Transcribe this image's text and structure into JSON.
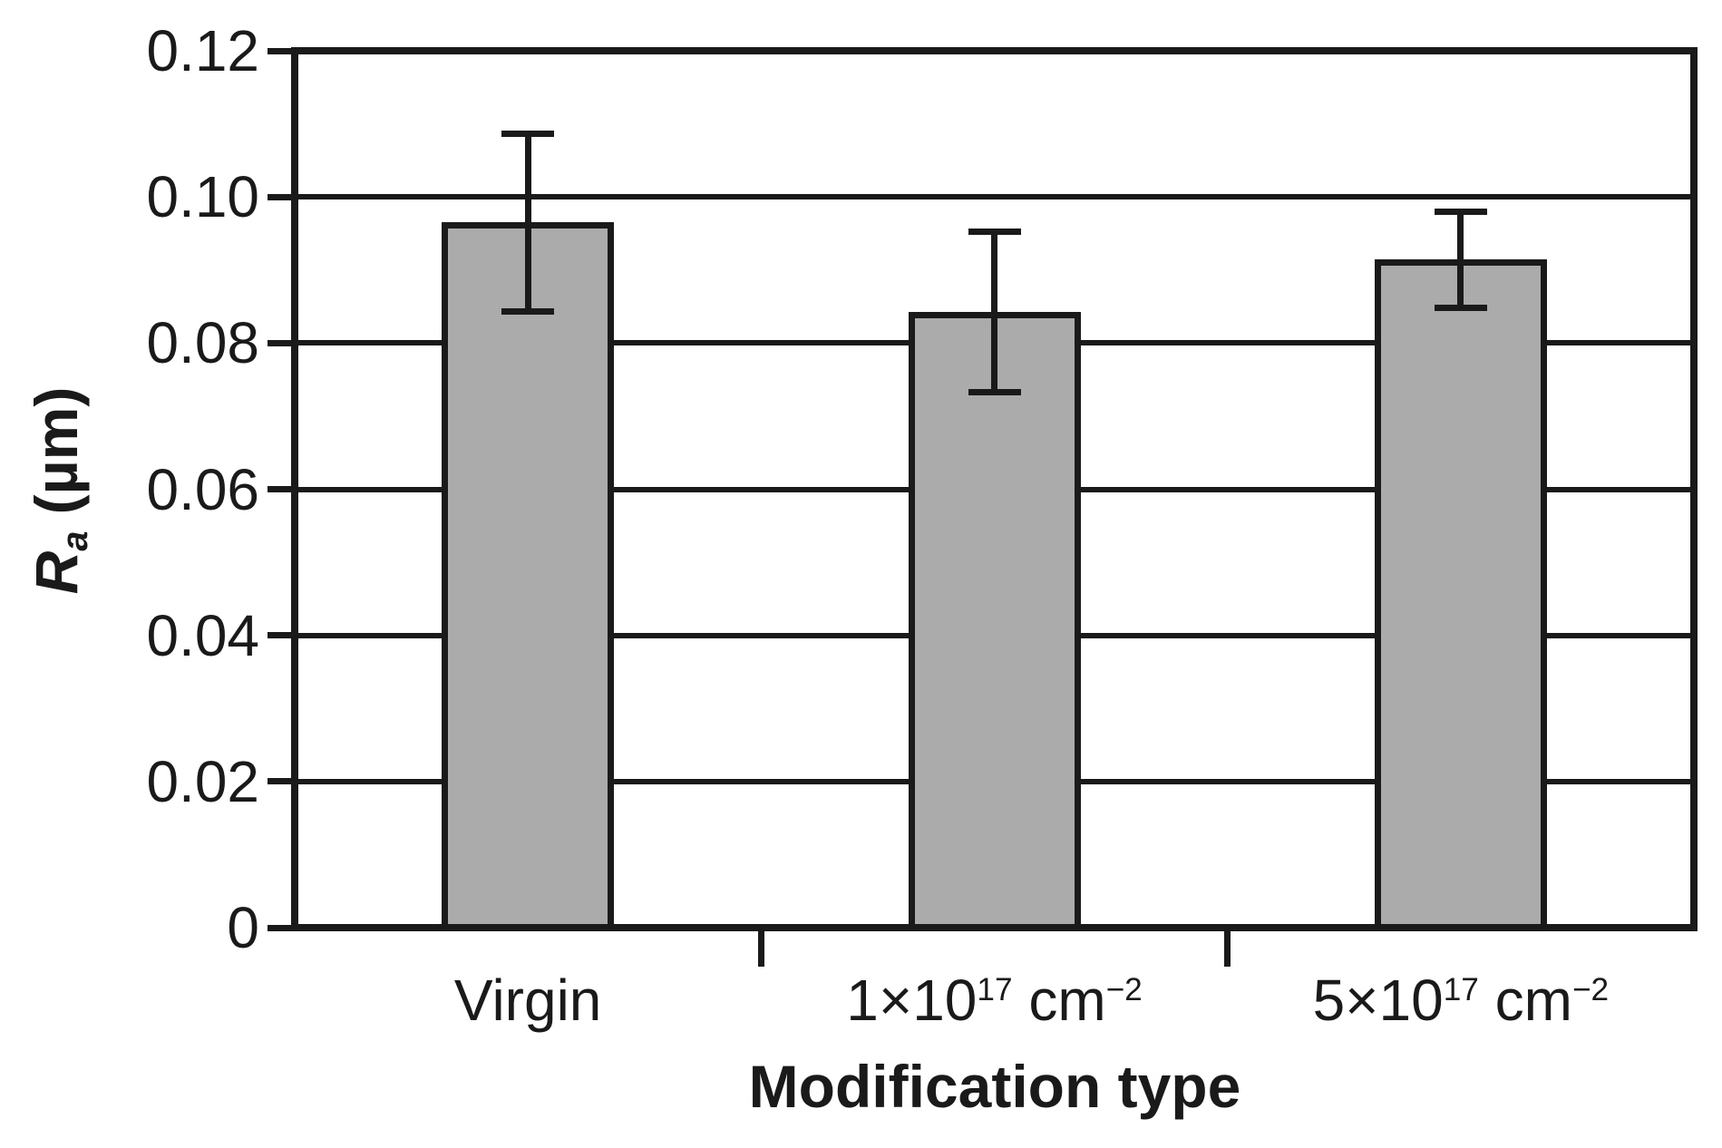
{
  "page": {
    "background": "#ffffff"
  },
  "chart_data": {
    "type": "bar",
    "title": "",
    "xlabel": "Modification type",
    "ylabel_text": "Ra (µm)",
    "ylabel_parts": [
      {
        "t": "R",
        "i": true
      },
      {
        "t": "a",
        "i": true,
        "sub": true
      },
      {
        "t": " (µm)"
      }
    ],
    "categories_text": [
      "Virgin",
      "1×10^17 cm^−2",
      "5×10^17 cm^−2"
    ],
    "categories_parts": [
      [
        {
          "t": "Virgin"
        }
      ],
      [
        {
          "t": "1×10"
        },
        {
          "t": "17",
          "sup": true
        },
        {
          "t": " cm"
        },
        {
          "t": "−2",
          "sup": true
        }
      ],
      [
        {
          "t": "5×10"
        },
        {
          "t": "17",
          "sup": true
        },
        {
          "t": " cm"
        },
        {
          "t": "−2",
          "sup": true
        }
      ]
    ],
    "values": [
      0.0965,
      0.0843,
      0.0914
    ],
    "errors": [
      0.0122,
      0.011,
      0.0066
    ],
    "ylim": [
      0,
      0.12
    ],
    "ytick_step": 0.02,
    "ytick_labels": [
      "0",
      "0.02",
      "0.04",
      "0.06",
      "0.08",
      "0.10",
      "0.12"
    ],
    "grid": true,
    "legend": "none",
    "bar_color": "#ababab",
    "line_color": "#1a1a1a",
    "text_color": "#1a1a1a"
  }
}
